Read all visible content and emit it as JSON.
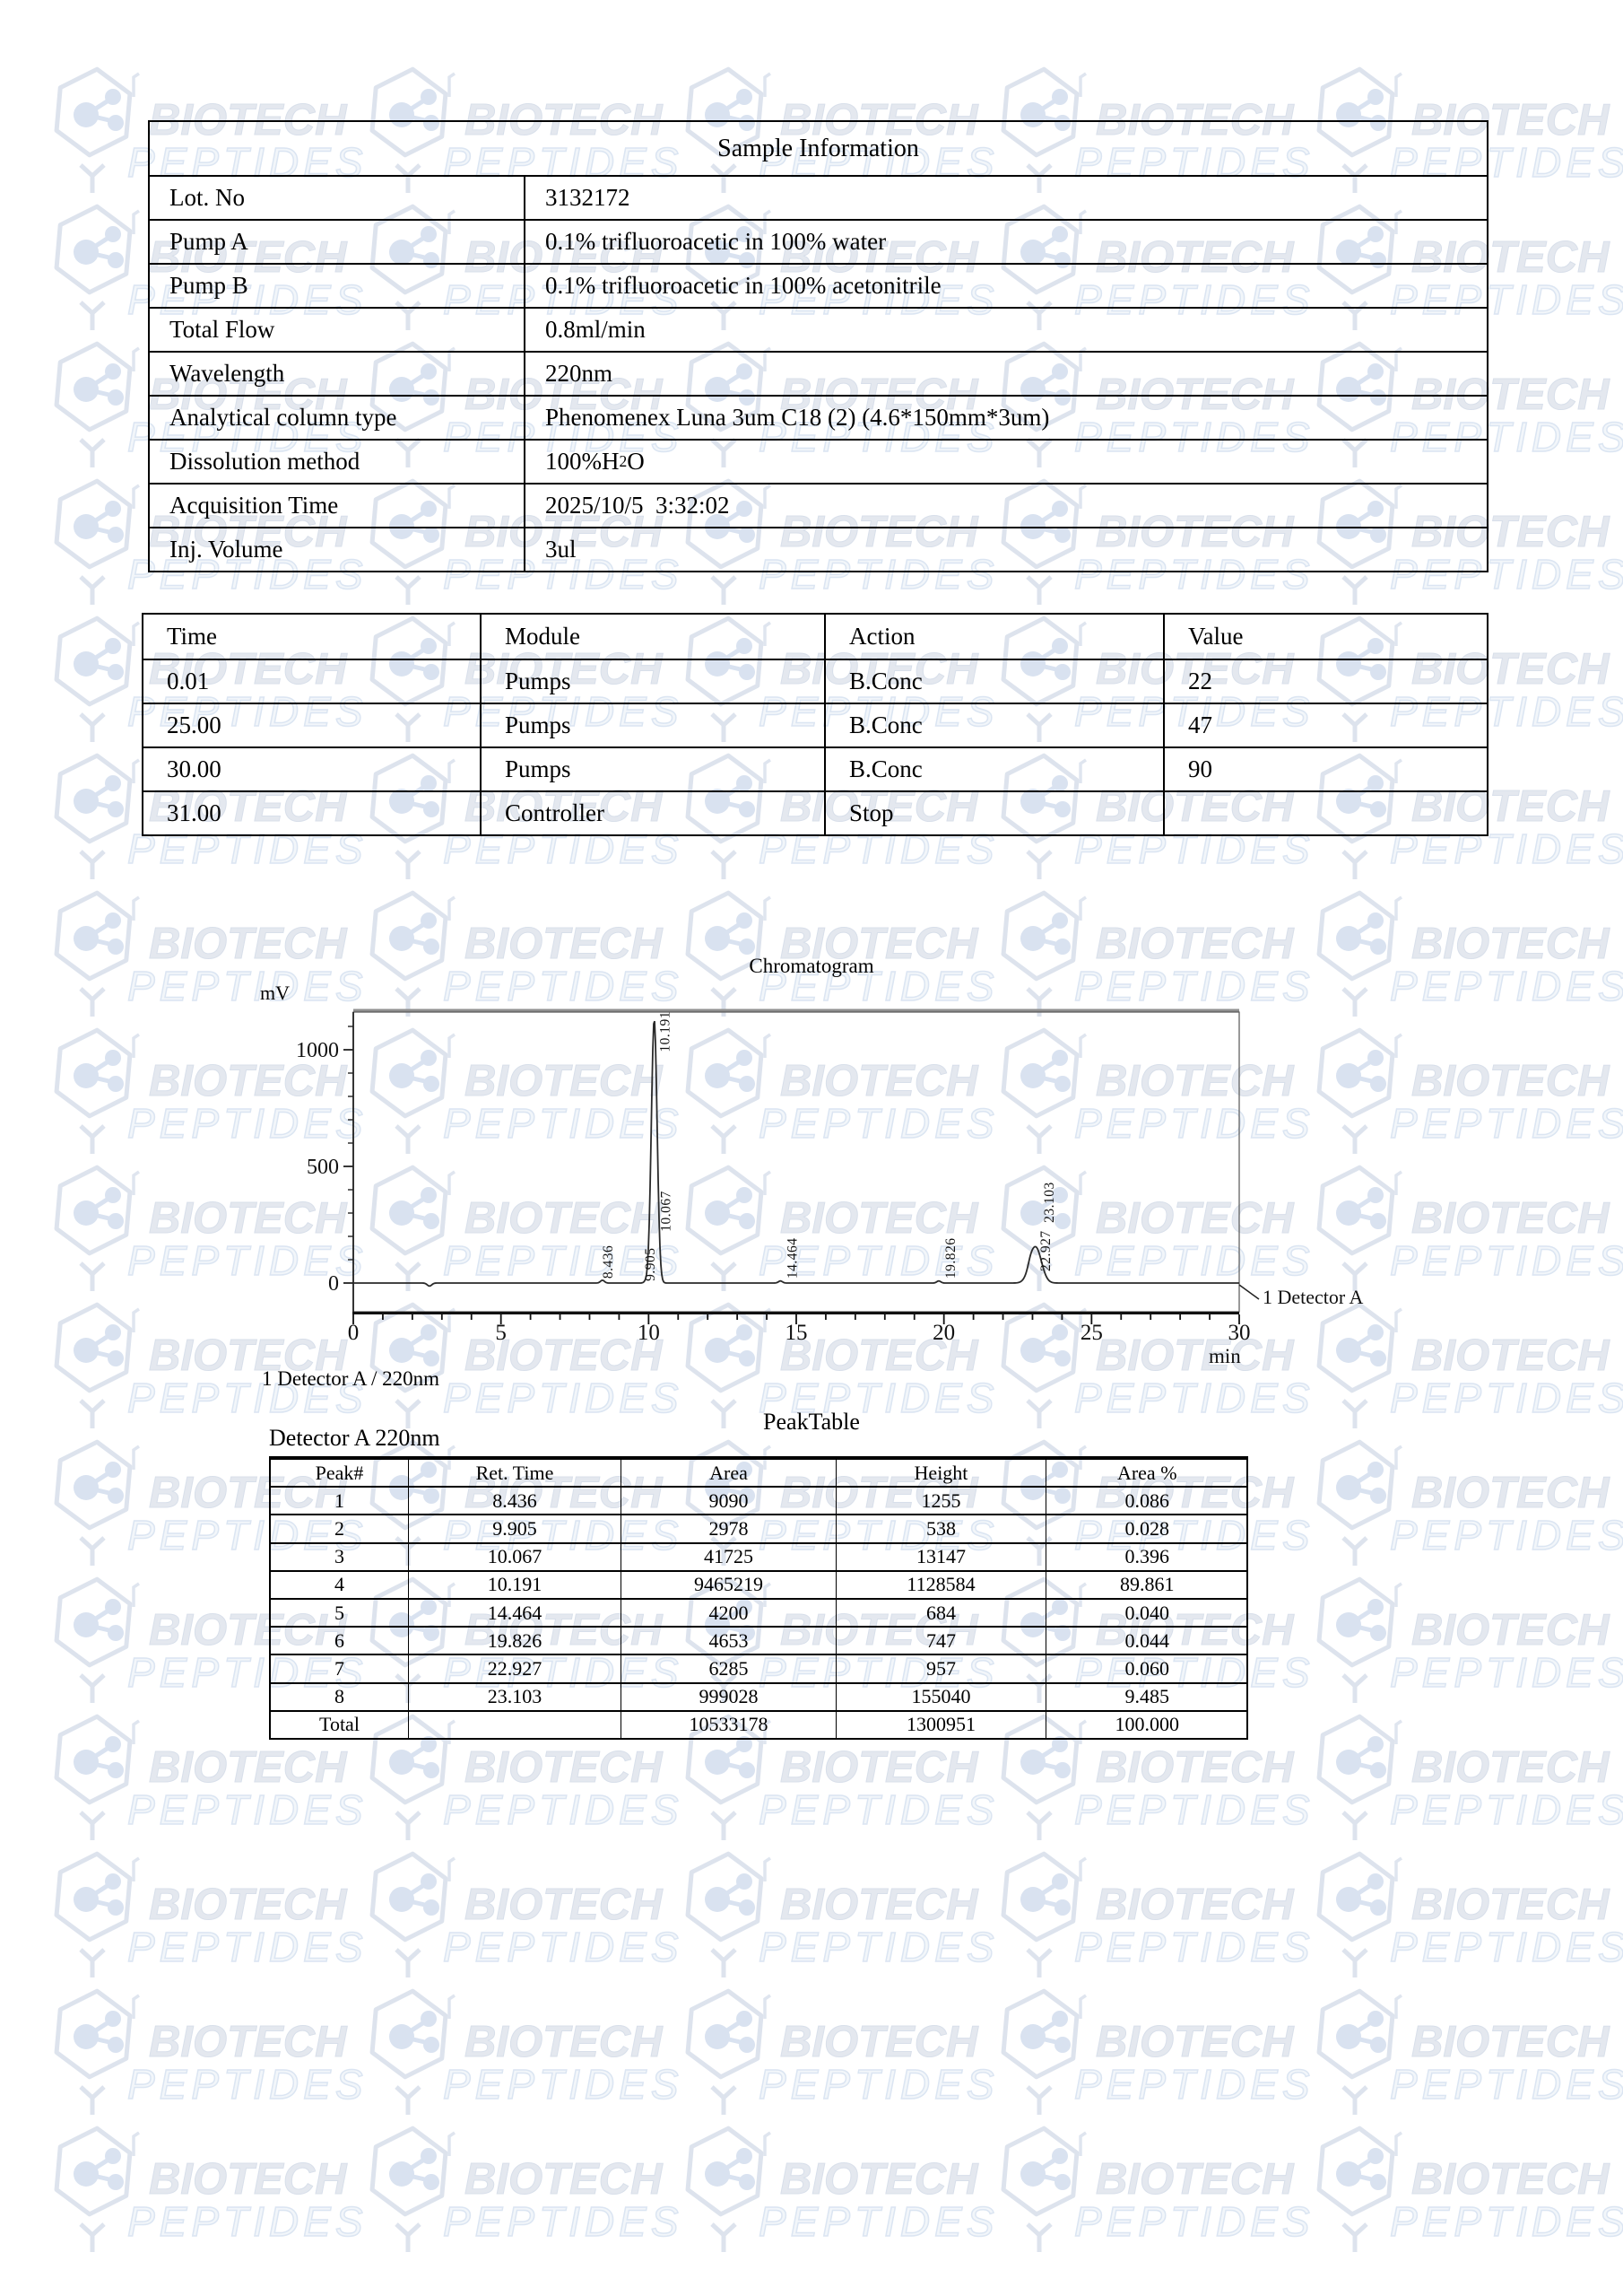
{
  "watermark": {
    "brand_line1": "BIOTECH",
    "brand_line2": "PEPTIDES",
    "color_text": "#e4e8ef",
    "color_outline": "#dbe5f2"
  },
  "sample_info": {
    "title": "Sample Information",
    "rows": [
      {
        "label": "Lot. No",
        "value": "3132172"
      },
      {
        "label": "Pump A",
        "value": "0.1% trifluoroacetic in 100% water"
      },
      {
        "label": "Pump B",
        "value": "0.1% trifluoroacetic in 100% acetonitrile"
      },
      {
        "label": "Total Flow",
        "value": "0.8ml/min"
      },
      {
        "label": "Wavelength",
        "value": "220nm"
      },
      {
        "label": "Analytical column type",
        "value": "Phenomenex Luna 3um C18 (2) (4.6*150mm*3um)"
      },
      {
        "label": "Dissolution method",
        "value": {
          "pre": "100%H",
          "sub": "2",
          "post": "O"
        }
      },
      {
        "label": "Acquisition Time",
        "value": "2025/10/5  3:32:02"
      },
      {
        "label": "Inj. Volume",
        "value": "3ul"
      }
    ]
  },
  "gradient_table": {
    "headers": [
      "Time",
      "Module",
      "Action",
      "Value"
    ],
    "rows": [
      [
        "0.01",
        "Pumps",
        "B.Conc",
        "22"
      ],
      [
        "25.00",
        "Pumps",
        "B.Conc",
        "47"
      ],
      [
        "30.00",
        "Pumps",
        "B.Conc",
        "90"
      ],
      [
        "31.00",
        "Controller",
        "Stop",
        ""
      ]
    ]
  },
  "chromatogram": {
    "title": "Chromatogram",
    "y_axis_label": "mV",
    "x_axis_label": "min",
    "detector_label": "1 Detector A",
    "legend": "1 Detector A / 220nm"
  },
  "chart_data": {
    "type": "line",
    "title": "Chromatogram",
    "xlabel": "min",
    "ylabel": "mV",
    "xlim": [
      0,
      30
    ],
    "ylim": [
      -60,
      1160
    ],
    "x_ticks": [
      0,
      5,
      10,
      15,
      20,
      25,
      30
    ],
    "y_ticks": [
      0,
      500,
      1000
    ],
    "grid": false,
    "series": [
      {
        "name": "1 Detector A / 220nm",
        "peaks": [
          {
            "rt": 8.436,
            "height_mV": 1.255
          },
          {
            "rt": 9.905,
            "height_mV": 0.538
          },
          {
            "rt": 10.067,
            "height_mV": 13.147
          },
          {
            "rt": 10.191,
            "height_mV": 1128.584
          },
          {
            "rt": 14.464,
            "height_mV": 0.684
          },
          {
            "rt": 19.826,
            "height_mV": 0.747
          },
          {
            "rt": 22.927,
            "height_mV": 0.957
          },
          {
            "rt": 23.103,
            "height_mV": 155.04
          }
        ]
      }
    ]
  },
  "peak_table": {
    "title": "PeakTable",
    "subtitle": "Detector A 220nm",
    "headers": [
      "Peak#",
      "Ret. Time",
      "Area",
      "Height",
      "Area %"
    ],
    "rows": [
      [
        "1",
        "8.436",
        "9090",
        "1255",
        "0.086"
      ],
      [
        "2",
        "9.905",
        "2978",
        "538",
        "0.028"
      ],
      [
        "3",
        "10.067",
        "41725",
        "13147",
        "0.396"
      ],
      [
        "4",
        "10.191",
        "9465219",
        "1128584",
        "89.861"
      ],
      [
        "5",
        "14.464",
        "4200",
        "684",
        "0.040"
      ],
      [
        "6",
        "19.826",
        "4653",
        "747",
        "0.044"
      ],
      [
        "7",
        "22.927",
        "6285",
        "957",
        "0.060"
      ],
      [
        "8",
        "23.103",
        "999028",
        "155040",
        "9.485"
      ]
    ],
    "total_row": [
      "Total",
      "",
      "10533178",
      "1300951",
      "100.000"
    ]
  }
}
